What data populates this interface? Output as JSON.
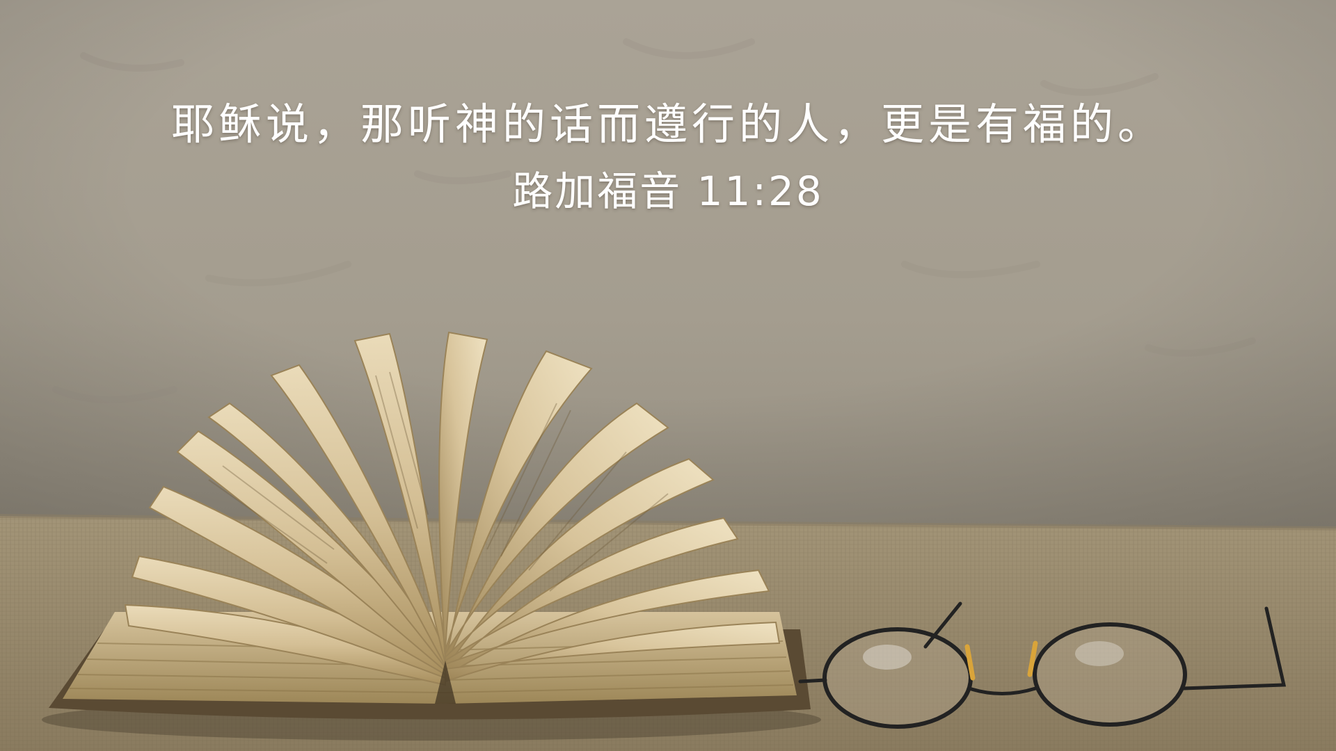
{
  "scene": {
    "subject": "open-book-with-fanned-pages",
    "accessory": "reading-glasses",
    "colors": {
      "wall": "#a9a294",
      "wall_shadow": "#8f897c",
      "cloth": "#9c8d70",
      "cloth_dark": "#7d6f56",
      "page_light": "#e6d6b4",
      "page_mid": "#cdb78e",
      "page_dark": "#a8905f",
      "cover": "#5a4a33",
      "glasses_frame": "#222222",
      "hinge": "#d9a43a"
    }
  },
  "verse": {
    "text": "耶稣说，那听神的话而遵行的人，更是有福的。",
    "reference": "路加福音 11:28"
  }
}
